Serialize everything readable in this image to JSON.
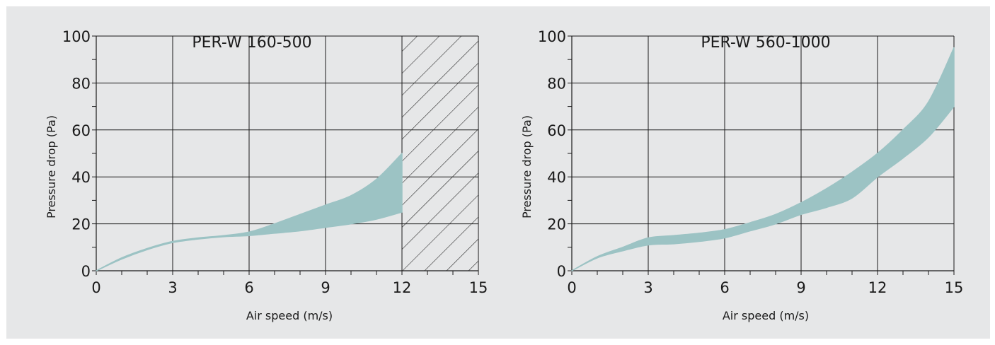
{
  "colors": {
    "panel_background": "#e6e7e8",
    "band_fill": "#9cc3c4",
    "grid": "#1a1a1a",
    "text": "#1a1a1a"
  },
  "chart_data": [
    {
      "type": "area",
      "title": "PER-W 160-500",
      "xlabel": "Air speed (m/s)",
      "ylabel": "Pressure drop (Pa)",
      "xlim": [
        0,
        15
      ],
      "ylim": [
        0,
        100
      ],
      "xticks": [
        0,
        3,
        6,
        9,
        12,
        15
      ],
      "yticks": [
        0,
        20,
        40,
        60,
        80,
        100
      ],
      "grid": true,
      "band": {
        "x": [
          0,
          1,
          2,
          3,
          4,
          5,
          6,
          7,
          8,
          9,
          10,
          11,
          12
        ],
        "upper": [
          0,
          5.5,
          9.5,
          12.5,
          14,
          15,
          16.5,
          20,
          24,
          28,
          32,
          39,
          50
        ],
        "lower": [
          0,
          5,
          9,
          12,
          13.5,
          14.5,
          15,
          16,
          17,
          18.5,
          20,
          22,
          25
        ]
      },
      "hatched_region": {
        "x_from": 12,
        "x_to": 15
      }
    },
    {
      "type": "area",
      "title": "PER-W 560-1000",
      "xlabel": "Air speed (m/s)",
      "ylabel": "Pressure drop (Pa)",
      "xlim": [
        0,
        15
      ],
      "ylim": [
        0,
        100
      ],
      "xticks": [
        0,
        3,
        6,
        9,
        12,
        15
      ],
      "yticks": [
        0,
        20,
        40,
        60,
        80,
        100
      ],
      "grid": true,
      "band": {
        "x": [
          0,
          1,
          2,
          3,
          4,
          5,
          6,
          7,
          8,
          9,
          10,
          11,
          12,
          13,
          14,
          15
        ],
        "upper": [
          0,
          6,
          10,
          14,
          15,
          16,
          17.5,
          20.5,
          24,
          29,
          35,
          42,
          50,
          60,
          72,
          95
        ],
        "lower": [
          0,
          5.5,
          8.5,
          11,
          11.5,
          12.5,
          14,
          17,
          20,
          24,
          27,
          31,
          40,
          48,
          57,
          70
        ]
      }
    }
  ]
}
